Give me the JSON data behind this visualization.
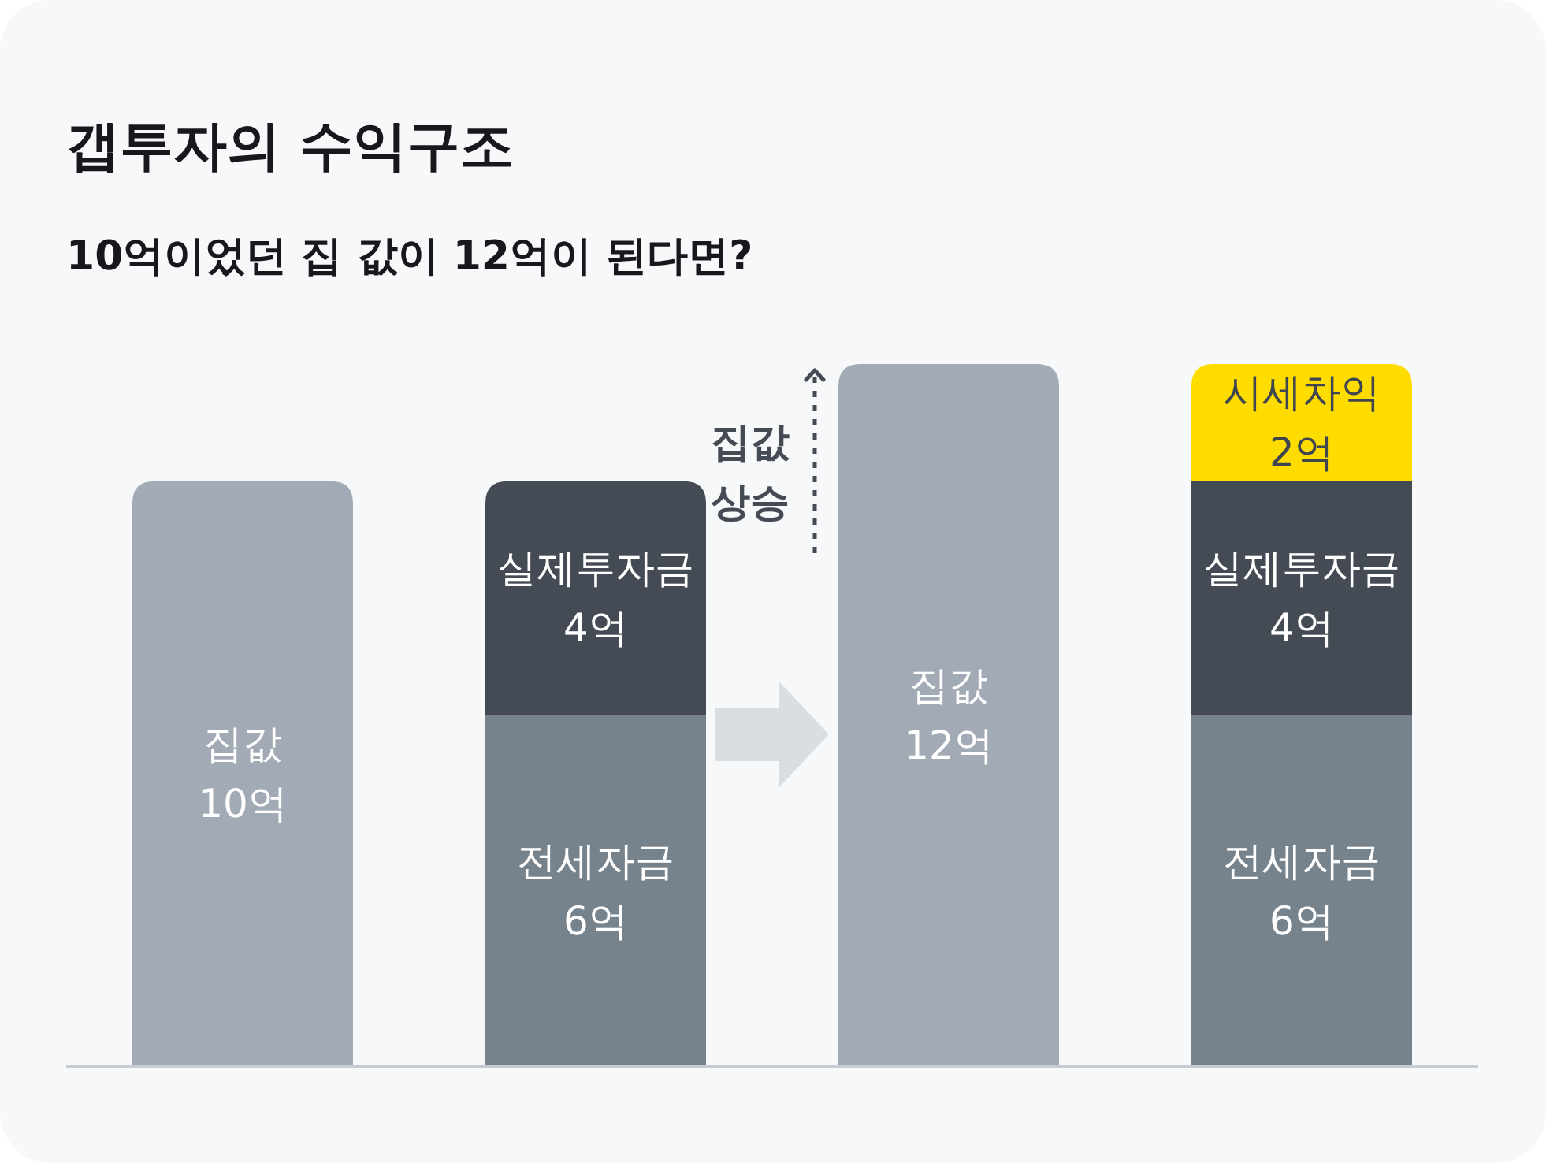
{
  "chart_data": {
    "type": "bar",
    "title": "갭투자의 수익구조",
    "subtitle": "10억이었던 집 값이 12억이 된다면?",
    "categories": [
      null,
      null,
      null,
      null
    ],
    "stacked": true,
    "tick_labels": false,
    "series": [
      {
        "name": "집값",
        "color": "#a2abb5",
        "values": [
          10,
          null,
          12,
          null
        ],
        "value_labels": [
          "10억",
          null,
          "12억",
          null
        ]
      },
      {
        "name": "전세자금",
        "color": "#77838c",
        "values": [
          null,
          6,
          null,
          6
        ],
        "value_labels": [
          null,
          "6억",
          null,
          "6억"
        ]
      },
      {
        "name": "실제투자금",
        "color": "#454b54",
        "values": [
          null,
          4,
          null,
          4
        ],
        "value_labels": [
          null,
          "4억",
          null,
          "4억"
        ]
      },
      {
        "name": "시세차익",
        "color": "#ffdc00",
        "values": [
          null,
          null,
          null,
          2
        ],
        "value_labels": [
          null,
          null,
          null,
          "2억"
        ]
      }
    ],
    "annotations": [
      "집값 상승"
    ]
  }
}
